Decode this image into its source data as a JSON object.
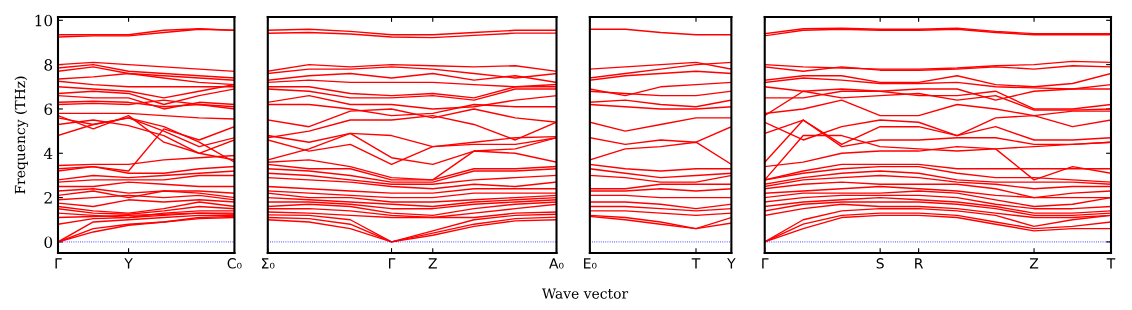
{
  "chart_data": [
    {
      "type": "line",
      "ylabel": "Frequency (THz)",
      "categories": [
        "Γ",
        null,
        "Y",
        null,
        null,
        "C₀"
      ],
      "ylim": [
        -0.5,
        10.15
      ],
      "yticks": [
        0,
        2,
        4,
        6,
        8,
        10
      ],
      "ref_lines": [
        {
          "axis": "y",
          "value": 0,
          "color": "#0000ff",
          "line_style": "dotted"
        }
      ],
      "series": [
        {
          "color": "#ff0000",
          "values": [
            9.25,
            9.3,
            9.3,
            9.45,
            9.6,
            9.55
          ]
        },
        {
          "color": "#ff0000",
          "values": [
            9.35,
            9.35,
            9.35,
            9.55,
            9.62,
            9.55
          ]
        },
        {
          "color": "#ff0000",
          "values": [
            8.0,
            8.1,
            8.0,
            7.9,
            7.8,
            7.7
          ]
        },
        {
          "color": "#ff0000",
          "values": [
            7.85,
            8.0,
            7.7,
            7.6,
            7.5,
            7.4
          ]
        },
        {
          "color": "#ff0000",
          "values": [
            7.7,
            7.9,
            7.6,
            7.4,
            7.2,
            7.1
          ]
        },
        {
          "color": "#ff0000",
          "values": [
            7.35,
            7.45,
            7.6,
            7.5,
            7.4,
            7.3
          ]
        },
        {
          "color": "#ff0000",
          "values": [
            7.25,
            7.1,
            7.0,
            7.0,
            7.0,
            7.0
          ]
        },
        {
          "color": "#ff0000",
          "values": [
            7.0,
            6.9,
            6.8,
            6.5,
            6.8,
            7.1
          ]
        },
        {
          "color": "#ff0000",
          "values": [
            6.7,
            6.8,
            6.7,
            6.2,
            6.6,
            6.9
          ]
        },
        {
          "color": "#ff0000",
          "values": [
            6.6,
            6.5,
            6.5,
            6.0,
            6.3,
            6.2
          ]
        },
        {
          "color": "#ff0000",
          "values": [
            6.3,
            6.35,
            6.3,
            6.1,
            6.2,
            6.1
          ]
        },
        {
          "color": "#ff0000",
          "values": [
            6.2,
            6.25,
            6.2,
            6.4,
            6.2,
            6.0
          ]
        },
        {
          "color": "#ff0000",
          "values": [
            5.8,
            5.8,
            5.8,
            5.7,
            5.6,
            5.55
          ]
        },
        {
          "color": "#ff0000",
          "values": [
            5.7,
            5.1,
            5.7,
            4.5,
            4.0,
            3.7
          ]
        },
        {
          "color": "#ff0000",
          "values": [
            5.6,
            5.3,
            5.6,
            5.2,
            4.5,
            3.6
          ]
        },
        {
          "color": "#ff0000",
          "values": [
            5.3,
            5.5,
            5.25,
            4.8,
            4.0,
            4.6
          ]
        },
        {
          "color": "#ff0000",
          "values": [
            4.8,
            5.3,
            5.6,
            5.0,
            4.3,
            4.7
          ]
        },
        {
          "color": "#ff0000",
          "values": [
            3.3,
            3.4,
            3.2,
            5.1,
            4.6,
            5.2
          ]
        },
        {
          "color": "#ff0000",
          "values": [
            3.45,
            3.5,
            3.5,
            3.7,
            3.8,
            3.9
          ]
        },
        {
          "color": "#ff0000",
          "values": [
            3.2,
            3.4,
            3.1,
            3.1,
            3.3,
            3.4
          ]
        },
        {
          "color": "#ff0000",
          "values": [
            2.8,
            3.0,
            2.9,
            3.0,
            3.1,
            3.2
          ]
        },
        {
          "color": "#ff0000",
          "values": [
            2.7,
            2.8,
            2.8,
            2.8,
            3.0,
            3.0
          ]
        },
        {
          "color": "#ff0000",
          "values": [
            2.5,
            2.5,
            2.7,
            2.6,
            2.5,
            2.5
          ]
        },
        {
          "color": "#ff0000",
          "values": [
            2.3,
            2.4,
            2.2,
            2.3,
            2.3,
            2.2
          ]
        },
        {
          "color": "#ff0000",
          "values": [
            2.1,
            2.3,
            2.0,
            2.3,
            2.2,
            2.0
          ]
        },
        {
          "color": "#ff0000",
          "values": [
            1.9,
            2.0,
            2.1,
            2.0,
            2.1,
            1.9
          ]
        },
        {
          "color": "#ff0000",
          "values": [
            1.75,
            1.6,
            1.9,
            1.8,
            1.9,
            1.8
          ]
        },
        {
          "color": "#ff0000",
          "values": [
            1.6,
            1.4,
            1.3,
            1.5,
            1.8,
            1.6
          ]
        },
        {
          "color": "#ff0000",
          "values": [
            1.5,
            1.3,
            1.25,
            1.4,
            1.6,
            1.5
          ]
        },
        {
          "color": "#ff0000",
          "values": [
            1.3,
            1.2,
            1.1,
            1.3,
            1.4,
            1.4
          ]
        },
        {
          "color": "#ff0000",
          "values": [
            1.1,
            1.15,
            1.2,
            1.25,
            1.3,
            1.3
          ]
        },
        {
          "color": "#ff0000",
          "values": [
            0.8,
            1.05,
            1.1,
            1.2,
            1.3,
            1.25
          ]
        },
        {
          "color": "#ff0000",
          "values": [
            0.0,
            0.9,
            1.0,
            1.1,
            1.2,
            1.2
          ]
        },
        {
          "color": "#ff0000",
          "values": [
            0.0,
            0.6,
            0.8,
            0.9,
            1.1,
            1.15
          ]
        },
        {
          "color": "#ff0000",
          "values": [
            0.0,
            0.45,
            0.75,
            0.9,
            1.05,
            1.1
          ]
        }
      ]
    },
    {
      "type": "line",
      "tick_labels": "x",
      "categories": [
        "Σ₀",
        null,
        null,
        "Γ",
        "Z",
        null,
        null,
        "A₀"
      ],
      "ylim": [
        -0.5,
        10.15
      ],
      "ref_lines": [
        {
          "axis": "y",
          "value": 0,
          "color": "#0000ff",
          "line_style": "dotted"
        }
      ],
      "series": [
        {
          "color": "#ff0000",
          "values": [
            9.55,
            9.6,
            9.5,
            9.35,
            9.35,
            9.45,
            9.55,
            9.55
          ]
        },
        {
          "color": "#ff0000",
          "values": [
            9.42,
            9.45,
            9.38,
            9.25,
            9.22,
            9.32,
            9.42,
            9.42
          ]
        },
        {
          "color": "#ff0000",
          "values": [
            7.7,
            8.0,
            7.9,
            8.0,
            7.95,
            7.9,
            7.95,
            7.7
          ]
        },
        {
          "color": "#ff0000",
          "values": [
            7.6,
            7.8,
            7.8,
            7.9,
            7.8,
            7.6,
            7.4,
            7.6
          ]
        },
        {
          "color": "#ff0000",
          "values": [
            7.3,
            7.5,
            7.6,
            7.4,
            7.6,
            7.3,
            7.5,
            7.2
          ]
        },
        {
          "color": "#ff0000",
          "values": [
            7.2,
            7.3,
            7.2,
            7.2,
            7.2,
            7.1,
            7.0,
            7.1
          ]
        },
        {
          "color": "#ff0000",
          "values": [
            7.0,
            7.0,
            6.7,
            6.6,
            6.7,
            6.5,
            7.0,
            7.0
          ]
        },
        {
          "color": "#ff0000",
          "values": [
            6.9,
            6.8,
            6.5,
            6.5,
            6.6,
            6.4,
            6.9,
            6.9
          ]
        },
        {
          "color": "#ff0000",
          "values": [
            6.3,
            6.6,
            6.2,
            6.2,
            6.0,
            6.1,
            6.4,
            6.6
          ]
        },
        {
          "color": "#ff0000",
          "values": [
            6.2,
            6.2,
            6.0,
            5.7,
            5.8,
            6.2,
            6.1,
            6.1
          ]
        },
        {
          "color": "#ff0000",
          "values": [
            5.5,
            5.2,
            5.9,
            6.0,
            5.6,
            6.0,
            5.6,
            5.4
          ]
        },
        {
          "color": "#ff0000",
          "values": [
            4.7,
            5.0,
            5.5,
            5.5,
            5.7,
            5.3,
            4.6,
            5.4
          ]
        },
        {
          "color": "#ff0000",
          "values": [
            4.8,
            4.5,
            4.9,
            4.8,
            4.3,
            4.5,
            4.7,
            4.75
          ]
        },
        {
          "color": "#ff0000",
          "values": [
            4.6,
            4.1,
            4.4,
            3.5,
            4.3,
            4.4,
            4.4,
            4.7
          ]
        },
        {
          "color": "#ff0000",
          "values": [
            3.7,
            4.2,
            4.9,
            3.8,
            3.5,
            4.1,
            4.2,
            4.7
          ]
        },
        {
          "color": "#ff0000",
          "values": [
            3.6,
            3.7,
            3.4,
            2.9,
            2.8,
            4.1,
            4.0,
            3.6
          ]
        },
        {
          "color": "#ff0000",
          "values": [
            3.5,
            3.3,
            3.3,
            2.8,
            2.8,
            3.3,
            3.3,
            3.4
          ]
        },
        {
          "color": "#ff0000",
          "values": [
            3.3,
            3.2,
            3.0,
            2.7,
            2.7,
            3.2,
            3.2,
            3.3
          ]
        },
        {
          "color": "#ff0000",
          "values": [
            3.1,
            3.0,
            2.8,
            2.6,
            2.6,
            2.8,
            2.9,
            3.0
          ]
        },
        {
          "color": "#ff0000",
          "values": [
            2.9,
            2.8,
            2.7,
            2.5,
            2.4,
            2.6,
            2.5,
            2.7
          ]
        },
        {
          "color": "#ff0000",
          "values": [
            2.5,
            2.4,
            2.3,
            2.2,
            2.2,
            2.4,
            2.4,
            2.4
          ]
        },
        {
          "color": "#ff0000",
          "values": [
            2.3,
            2.2,
            2.1,
            2.0,
            2.0,
            2.2,
            2.2,
            2.2
          ]
        },
        {
          "color": "#ff0000",
          "values": [
            2.2,
            2.0,
            2.0,
            1.8,
            1.8,
            1.9,
            2.0,
            2.1
          ]
        },
        {
          "color": "#ff0000",
          "values": [
            2.0,
            1.9,
            1.8,
            1.7,
            1.6,
            1.8,
            1.9,
            2.0
          ]
        },
        {
          "color": "#ff0000",
          "values": [
            1.8,
            1.8,
            1.7,
            1.5,
            1.5,
            1.7,
            1.8,
            1.9
          ]
        },
        {
          "color": "#ff0000",
          "values": [
            1.6,
            1.7,
            1.6,
            1.3,
            1.2,
            1.5,
            1.7,
            1.8
          ]
        },
        {
          "color": "#ff0000",
          "values": [
            1.5,
            1.5,
            1.4,
            1.2,
            1.1,
            1.3,
            1.5,
            1.7
          ]
        },
        {
          "color": "#ff0000",
          "values": [
            1.35,
            1.3,
            1.2,
            1.1,
            1.1,
            1.1,
            1.3,
            1.35
          ]
        },
        {
          "color": "#ff0000",
          "values": [
            1.22,
            1.2,
            1.0,
            0.0,
            0.5,
            1.0,
            1.2,
            1.25
          ]
        },
        {
          "color": "#ff0000",
          "values": [
            1.1,
            1.05,
            0.8,
            0.0,
            0.4,
            0.8,
            1.05,
            1.12
          ]
        },
        {
          "color": "#ff0000",
          "values": [
            1.0,
            0.9,
            0.6,
            0.0,
            0.3,
            0.7,
            0.95,
            1.0
          ]
        }
      ]
    },
    {
      "type": "line",
      "tick_labels": "x",
      "xlabel": "Wave vector",
      "categories": [
        "E₀",
        null,
        null,
        "T",
        "Y"
      ],
      "ylim": [
        -0.5,
        10.15
      ],
      "ref_lines": [
        {
          "axis": "y",
          "value": 0,
          "color": "#0000ff",
          "line_style": "dotted"
        }
      ],
      "series": [
        {
          "color": "#ff0000",
          "values": [
            9.6,
            9.6,
            9.45,
            9.35,
            9.35
          ]
        },
        {
          "color": "#ff0000",
          "values": [
            7.8,
            7.9,
            8.0,
            8.1,
            7.8
          ]
        },
        {
          "color": "#ff0000",
          "values": [
            7.4,
            7.6,
            7.8,
            8.0,
            8.1
          ]
        },
        {
          "color": "#ff0000",
          "values": [
            7.3,
            7.5,
            7.6,
            7.7,
            7.6
          ]
        },
        {
          "color": "#ff0000",
          "values": [
            6.9,
            6.6,
            7.0,
            7.1,
            7.2
          ]
        },
        {
          "color": "#ff0000",
          "values": [
            6.8,
            6.7,
            6.6,
            6.6,
            6.8
          ]
        },
        {
          "color": "#ff0000",
          "values": [
            6.3,
            6.4,
            6.2,
            6.1,
            6.4
          ]
        },
        {
          "color": "#ff0000",
          "values": [
            6.2,
            6.1,
            6.0,
            6.0,
            6.1
          ]
        },
        {
          "color": "#ff0000",
          "values": [
            5.4,
            5.0,
            5.3,
            5.6,
            5.6
          ]
        },
        {
          "color": "#ff0000",
          "values": [
            4.7,
            4.4,
            4.6,
            4.5,
            5.2
          ]
        },
        {
          "color": "#ff0000",
          "values": [
            3.7,
            4.2,
            4.3,
            4.5,
            3.5
          ]
        },
        {
          "color": "#ff0000",
          "values": [
            3.5,
            3.3,
            3.2,
            3.3,
            3.3
          ]
        },
        {
          "color": "#ff0000",
          "values": [
            3.3,
            3.1,
            2.9,
            3.0,
            3.1
          ]
        },
        {
          "color": "#ff0000",
          "values": [
            3.0,
            2.9,
            2.7,
            2.7,
            3.0
          ]
        },
        {
          "color": "#ff0000",
          "values": [
            2.4,
            2.4,
            2.6,
            2.6,
            2.6
          ]
        },
        {
          "color": "#ff0000",
          "values": [
            2.3,
            2.3,
            2.4,
            2.3,
            2.4
          ]
        },
        {
          "color": "#ff0000",
          "values": [
            2.1,
            2.1,
            2.0,
            2.0,
            2.0
          ]
        },
        {
          "color": "#ff0000",
          "values": [
            1.8,
            1.8,
            1.7,
            1.5,
            1.7
          ]
        },
        {
          "color": "#ff0000",
          "values": [
            1.6,
            1.6,
            1.5,
            1.4,
            1.5
          ]
        },
        {
          "color": "#ff0000",
          "values": [
            1.4,
            1.4,
            1.3,
            1.2,
            1.3
          ]
        },
        {
          "color": "#ff0000",
          "values": [
            1.2,
            1.1,
            0.9,
            0.6,
            1.1
          ]
        },
        {
          "color": "#ff0000",
          "values": [
            1.15,
            1.0,
            0.8,
            0.6,
            0.85
          ]
        }
      ]
    },
    {
      "type": "line",
      "tick_labels": "x",
      "categories": [
        "Γ",
        null,
        null,
        "S",
        "R",
        null,
        null,
        "Z",
        null,
        "T"
      ],
      "ylim": [
        -0.5,
        10.15
      ],
      "yticks": [
        0,
        2,
        4,
        6,
        8,
        10
      ],
      "ref_lines": [
        {
          "axis": "y",
          "value": 0,
          "color": "#0000ff",
          "line_style": "dotted"
        }
      ],
      "series": [
        {
          "color": "#ff0000",
          "values": [
            9.3,
            9.55,
            9.6,
            9.55,
            9.55,
            9.6,
            9.45,
            9.35,
            9.35,
            9.35
          ]
        },
        {
          "color": "#ff0000",
          "values": [
            9.4,
            9.62,
            9.64,
            9.6,
            9.6,
            9.64,
            9.5,
            9.4,
            9.4,
            9.4
          ]
        },
        {
          "color": "#ff0000",
          "values": [
            8.0,
            7.9,
            7.85,
            7.8,
            7.8,
            7.85,
            7.95,
            8.0,
            8.15,
            8.1
          ]
        },
        {
          "color": "#ff0000",
          "values": [
            7.9,
            7.7,
            7.9,
            7.75,
            7.75,
            7.8,
            7.9,
            7.8,
            7.95,
            7.9
          ]
        },
        {
          "color": "#ff0000",
          "values": [
            7.3,
            7.5,
            7.5,
            7.2,
            7.2,
            7.5,
            7.1,
            7.0,
            7.15,
            7.6
          ]
        },
        {
          "color": "#ff0000",
          "values": [
            7.2,
            7.4,
            7.3,
            7.15,
            7.15,
            7.2,
            7.0,
            6.95,
            6.9,
            7.1
          ]
        },
        {
          "color": "#ff0000",
          "values": [
            7.0,
            6.8,
            6.9,
            6.8,
            6.9,
            6.9,
            6.4,
            6.8,
            6.9,
            6.9
          ]
        },
        {
          "color": "#ff0000",
          "values": [
            6.5,
            6.5,
            6.8,
            6.8,
            6.6,
            6.6,
            6.8,
            6.0,
            6.0,
            6.2
          ]
        },
        {
          "color": "#ff0000",
          "values": [
            5.7,
            6.8,
            6.5,
            6.6,
            6.7,
            6.4,
            6.6,
            5.95,
            5.95,
            6.0
          ]
        },
        {
          "color": "#ff0000",
          "values": [
            5.8,
            6.0,
            6.4,
            5.7,
            5.7,
            6.2,
            6.0,
            5.7,
            5.9,
            5.9
          ]
        },
        {
          "color": "#ff0000",
          "values": [
            5.4,
            4.6,
            5.2,
            5.5,
            5.4,
            4.8,
            5.6,
            5.7,
            5.2,
            5.5
          ]
        },
        {
          "color": "#ff0000",
          "values": [
            4.9,
            5.5,
            4.4,
            5.2,
            5.2,
            4.8,
            5.2,
            4.6,
            4.6,
            4.7
          ]
        },
        {
          "color": "#ff0000",
          "values": [
            3.6,
            5.5,
            4.3,
            4.6,
            4.6,
            4.7,
            4.7,
            4.4,
            4.4,
            4.5
          ]
        },
        {
          "color": "#ff0000",
          "values": [
            2.8,
            4.8,
            4.8,
            4.3,
            4.2,
            4.1,
            4.2,
            4.3,
            4.4,
            4.5
          ]
        },
        {
          "color": "#ff0000",
          "values": [
            3.4,
            3.6,
            4.0,
            4.1,
            4.1,
            4.3,
            4.2,
            2.8,
            3.4,
            3.1
          ]
        },
        {
          "color": "#ff0000",
          "values": [
            2.8,
            3.2,
            3.5,
            3.5,
            3.5,
            3.3,
            3.3,
            3.3,
            3.3,
            3.3
          ]
        },
        {
          "color": "#ff0000",
          "values": [
            2.8,
            3.1,
            3.3,
            3.4,
            3.4,
            3.1,
            2.9,
            2.9,
            2.8,
            2.7
          ]
        },
        {
          "color": "#ff0000",
          "values": [
            2.6,
            2.9,
            3.1,
            3.2,
            3.1,
            2.8,
            2.7,
            2.7,
            2.7,
            2.6
          ]
        },
        {
          "color": "#ff0000",
          "values": [
            2.5,
            2.8,
            2.9,
            3.0,
            2.9,
            2.7,
            2.6,
            2.4,
            2.5,
            2.5
          ]
        },
        {
          "color": "#ff0000",
          "values": [
            2.4,
            2.6,
            2.7,
            2.6,
            2.6,
            2.6,
            2.4,
            2.0,
            2.2,
            2.3
          ]
        },
        {
          "color": "#ff0000",
          "values": [
            2.2,
            2.3,
            2.4,
            2.5,
            2.4,
            2.3,
            2.1,
            2.0,
            2.0,
            2.0
          ]
        },
        {
          "color": "#ff0000",
          "values": [
            2.0,
            2.2,
            2.2,
            2.2,
            2.3,
            2.2,
            1.9,
            1.6,
            1.7,
            2.0
          ]
        },
        {
          "color": "#ff0000",
          "values": [
            1.8,
            2.0,
            2.1,
            2.1,
            2.1,
            2.0,
            1.7,
            1.5,
            1.5,
            1.6
          ]
        },
        {
          "color": "#ff0000",
          "values": [
            1.6,
            1.8,
            1.9,
            2.0,
            1.9,
            1.8,
            1.6,
            1.3,
            1.3,
            1.4
          ]
        },
        {
          "color": "#ff0000",
          "values": [
            1.4,
            1.7,
            1.8,
            1.8,
            1.8,
            1.7,
            1.5,
            1.2,
            1.2,
            1.3
          ]
        },
        {
          "color": "#ff0000",
          "values": [
            1.2,
            1.5,
            1.7,
            1.6,
            1.6,
            1.5,
            1.3,
            1.1,
            1.1,
            1.2
          ]
        },
        {
          "color": "#ff0000",
          "values": [
            0.0,
            1.0,
            1.4,
            1.5,
            1.5,
            1.4,
            1.2,
            0.7,
            1.0,
            1.2
          ]
        },
        {
          "color": "#ff0000",
          "values": [
            0.0,
            0.8,
            1.2,
            1.3,
            1.3,
            1.2,
            0.9,
            0.6,
            0.7,
            0.9
          ]
        },
        {
          "color": "#ff0000",
          "values": [
            0.0,
            0.6,
            1.1,
            1.2,
            1.2,
            1.1,
            0.8,
            0.5,
            0.6,
            0.6
          ]
        }
      ]
    }
  ]
}
